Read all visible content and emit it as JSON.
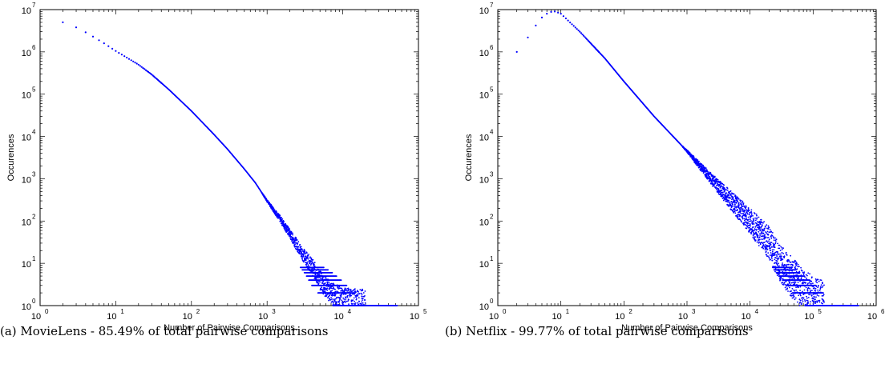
{
  "chart_data": [
    {
      "type": "scatter",
      "title": "",
      "caption": "(a) MovieLens - 85.49% of total pairwise comparisons",
      "xlabel": "Number of Pairwise Comparisons",
      "ylabel": "Occurences",
      "xscale": "log",
      "yscale": "log",
      "xlim": [
        1,
        100000
      ],
      "ylim": [
        1,
        10000000
      ],
      "x_ticks": [
        "10^0",
        "10^1",
        "10^2",
        "10^3",
        "10^4",
        "10^5"
      ],
      "y_ticks": [
        "10^0",
        "10^1",
        "10^2",
        "10^3",
        "10^4",
        "10^5",
        "10^6",
        "10^7"
      ],
      "grid": false,
      "marker_color": "#0000ff",
      "series": [
        {
          "values": [
            [
              2,
              5000000
            ],
            [
              3,
              3800000
            ],
            [
              4,
              2900000
            ],
            [
              5,
              2300000
            ],
            [
              7,
              1600000
            ],
            [
              10,
              1050000
            ],
            [
              20,
              500000
            ],
            [
              30,
              290000
            ],
            [
              50,
              130000
            ],
            [
              100,
              40000
            ],
            [
              200,
              11000
            ],
            [
              300,
              5000
            ],
            [
              500,
              1700
            ],
            [
              700,
              800
            ],
            [
              1000,
              300
            ],
            [
              1500,
              110
            ],
            [
              2000,
              50
            ],
            [
              3000,
              16
            ],
            [
              4000,
              8
            ],
            [
              5000,
              4
            ],
            [
              7000,
              2
            ],
            [
              10000,
              1.3
            ],
            [
              20000,
              1
            ]
          ]
        }
      ]
    },
    {
      "type": "scatter",
      "title": "",
      "caption": "(b) Netflix - 99.77% of total pairwise comparisons",
      "xlabel": "Number of Pairwise Comparisons",
      "ylabel": "Occurences",
      "xscale": "log",
      "yscale": "log",
      "xlim": [
        1,
        1000000
      ],
      "ylim": [
        1,
        10000000
      ],
      "x_ticks": [
        "10^0",
        "10^1",
        "10^2",
        "10^3",
        "10^4",
        "10^5",
        "10^6"
      ],
      "y_ticks": [
        "10^0",
        "10^1",
        "10^2",
        "10^3",
        "10^4",
        "10^5",
        "10^6",
        "10^7"
      ],
      "grid": false,
      "marker_color": "#0000ff",
      "series": [
        {
          "values": [
            [
              2,
              1000000
            ],
            [
              3,
              2200000
            ],
            [
              4,
              4200000
            ],
            [
              5,
              6500000
            ],
            [
              6,
              8000000
            ],
            [
              7,
              8800000
            ],
            [
              8,
              9000000
            ],
            [
              10,
              8000000
            ],
            [
              20,
              3000000
            ],
            [
              50,
              700000
            ],
            [
              100,
              200000
            ],
            [
              300,
              30000
            ],
            [
              1000,
              4500
            ],
            [
              3000,
              700
            ],
            [
              10000,
              100
            ],
            [
              20000,
              30
            ],
            [
              30000,
              10
            ],
            [
              50000,
              4
            ],
            [
              70000,
              2
            ],
            [
              100000,
              1.3
            ],
            [
              150000,
              1
            ]
          ]
        }
      ]
    }
  ]
}
